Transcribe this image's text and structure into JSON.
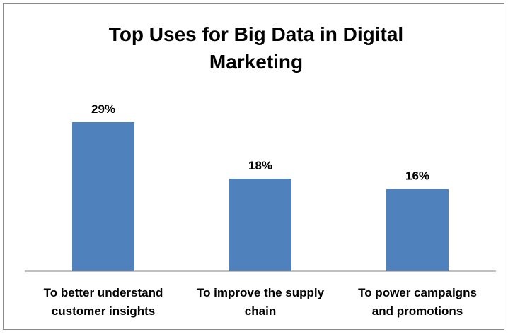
{
  "chart_data": {
    "type": "bar",
    "title_lines": [
      "Top Uses for Big Data in Digital",
      "Marketing"
    ],
    "categories": [
      [
        "To better understand",
        "customer insights"
      ],
      [
        "To improve the supply",
        "chain"
      ],
      [
        "To power campaigns",
        "and promotions"
      ]
    ],
    "values": [
      29,
      18,
      16
    ],
    "value_labels": [
      "29%",
      "18%",
      "16%"
    ],
    "ylim": [
      0,
      30
    ],
    "grid": false,
    "legend": "none",
    "bar_color": "#4f81bd",
    "axis_color": "#808080"
  }
}
